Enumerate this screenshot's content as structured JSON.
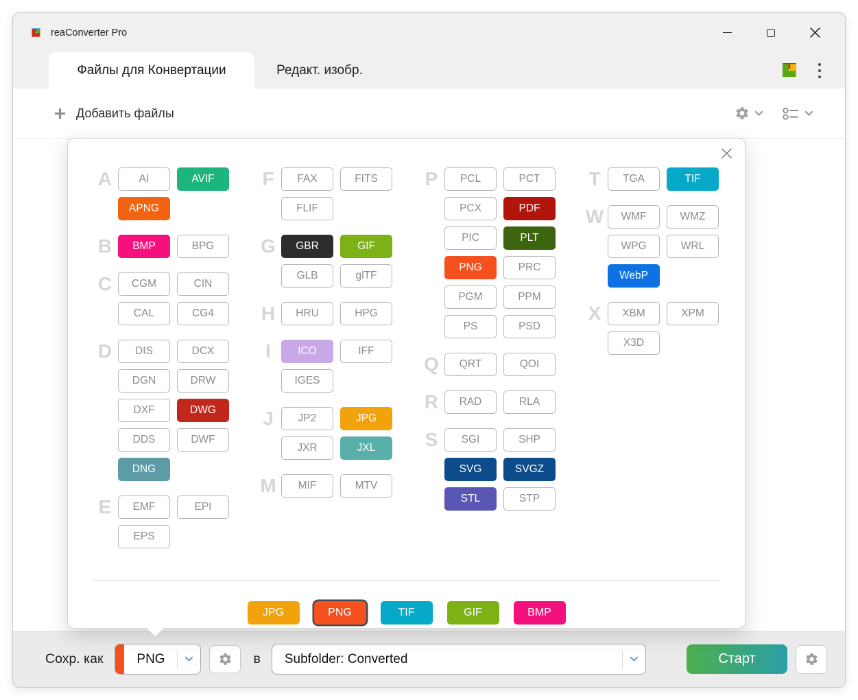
{
  "window": {
    "title": "reaConverter Pro"
  },
  "tabs": [
    {
      "label": "Файлы для Конвертации",
      "active": true
    },
    {
      "label": "Редакт. изобр.",
      "active": false
    }
  ],
  "toolbar": {
    "add_files_label": "Добавить файлы"
  },
  "brand": {
    "logo_colors": {
      "yellow": "#f2b50d",
      "blue": "#2678d9",
      "red": "#d6281e",
      "green": "#5aa814"
    }
  },
  "format_picker": {
    "columns": [
      {
        "sections": [
          {
            "letter": "A",
            "rows": [
              [
                {
                  "label": "AI"
                },
                {
                  "label": "AVIF",
                  "bg": "#1db57e"
                }
              ],
              [
                {
                  "label": "APNG",
                  "bg": "#f26411"
                }
              ]
            ]
          },
          {
            "letter": "B",
            "rows": [
              [
                {
                  "label": "BMP",
                  "bg": "#f5117d"
                },
                {
                  "label": "BPG"
                }
              ]
            ]
          },
          {
            "letter": "C",
            "rows": [
              [
                {
                  "label": "CGM"
                },
                {
                  "label": "CIN"
                }
              ],
              [
                {
                  "label": "CAL"
                },
                {
                  "label": "CG4"
                }
              ]
            ]
          },
          {
            "letter": "D",
            "rows": [
              [
                {
                  "label": "DIS"
                },
                {
                  "label": "DCX"
                }
              ],
              [
                {
                  "label": "DGN"
                },
                {
                  "label": "DRW"
                }
              ],
              [
                {
                  "label": "DXF"
                },
                {
                  "label": "DWG",
                  "bg": "#c2271b"
                }
              ],
              [
                {
                  "label": "DDS"
                },
                {
                  "label": "DWF"
                }
              ],
              [
                {
                  "label": "DNG",
                  "bg": "#5d9ba7"
                }
              ]
            ]
          },
          {
            "letter": "E",
            "rows": [
              [
                {
                  "label": "EMF"
                },
                {
                  "label": "EPI"
                }
              ],
              [
                {
                  "label": "EPS"
                }
              ]
            ]
          }
        ]
      },
      {
        "sections": [
          {
            "letter": "F",
            "rows": [
              [
                {
                  "label": "FAX"
                },
                {
                  "label": "FITS"
                }
              ],
              [
                {
                  "label": "FLIF"
                }
              ]
            ]
          },
          {
            "letter": "G",
            "rows": [
              [
                {
                  "label": "GBR",
                  "bg": "#2d2d2d"
                },
                {
                  "label": "GIF",
                  "bg": "#7cb216"
                }
              ],
              [
                {
                  "label": "GLB"
                },
                {
                  "label": "glTF"
                }
              ]
            ]
          },
          {
            "letter": "H",
            "rows": [
              [
                {
                  "label": "HRU"
                },
                {
                  "label": "HPG"
                }
              ]
            ]
          },
          {
            "letter": "I",
            "rows": [
              [
                {
                  "label": "ICO",
                  "bg": "#c8a9e8"
                },
                {
                  "label": "IFF"
                }
              ],
              [
                {
                  "label": "IGES"
                }
              ]
            ]
          },
          {
            "letter": "J",
            "rows": [
              [
                {
                  "label": "JP2"
                },
                {
                  "label": "JPG",
                  "bg": "#f2a30c"
                }
              ],
              [
                {
                  "label": "JXR"
                },
                {
                  "label": "JXL",
                  "bg": "#58b0a8"
                }
              ]
            ]
          },
          {
            "letter": "M",
            "rows": [
              [
                {
                  "label": "MIF"
                },
                {
                  "label": "MTV"
                }
              ]
            ]
          }
        ]
      },
      {
        "sections": [
          {
            "letter": "P",
            "rows": [
              [
                {
                  "label": "PCL"
                },
                {
                  "label": "PCT"
                }
              ],
              [
                {
                  "label": "PCX"
                },
                {
                  "label": "PDF",
                  "bg": "#b2150c"
                }
              ],
              [
                {
                  "label": "PIC"
                },
                {
                  "label": "PLT",
                  "bg": "#3d6510"
                }
              ],
              [
                {
                  "label": "PNG",
                  "bg": "#f4511e"
                },
                {
                  "label": "PRC"
                }
              ],
              [
                {
                  "label": "PGM"
                },
                {
                  "label": "PPM"
                }
              ],
              [
                {
                  "label": "PS"
                },
                {
                  "label": "PSD"
                }
              ]
            ]
          },
          {
            "letter": "Q",
            "rows": [
              [
                {
                  "label": "QRT"
                },
                {
                  "label": "QOI"
                }
              ]
            ]
          },
          {
            "letter": "R",
            "rows": [
              [
                {
                  "label": "RAD"
                },
                {
                  "label": "RLA"
                }
              ]
            ]
          },
          {
            "letter": "S",
            "rows": [
              [
                {
                  "label": "SGI"
                },
                {
                  "label": "SHP"
                }
              ],
              [
                {
                  "label": "SVG",
                  "bg": "#0c4c8a"
                },
                {
                  "label": "SVGZ",
                  "bg": "#0c4c8a"
                }
              ],
              [
                {
                  "label": "STL",
                  "bg": "#5a57b4"
                },
                {
                  "label": "STP"
                }
              ]
            ]
          }
        ]
      },
      {
        "sections": [
          {
            "letter": "T",
            "rows": [
              [
                {
                  "label": "TGA"
                },
                {
                  "label": "TIF",
                  "bg": "#06a9c8"
                }
              ]
            ]
          },
          {
            "letter": "W",
            "rows": [
              [
                {
                  "label": "WMF"
                },
                {
                  "label": "WMZ"
                }
              ],
              [
                {
                  "label": "WPG"
                },
                {
                  "label": "WRL"
                }
              ],
              [
                {
                  "label": "WebP",
                  "bg": "#0e72e4"
                }
              ]
            ]
          },
          {
            "letter": "X",
            "rows": [
              [
                {
                  "label": "XBM"
                },
                {
                  "label": "XPM"
                }
              ],
              [
                {
                  "label": "X3D"
                }
              ]
            ]
          }
        ]
      }
    ],
    "quick_formats": [
      {
        "label": "JPG",
        "bg": "#f2a30c"
      },
      {
        "label": "PNG",
        "bg": "#f4511e",
        "selected": true
      },
      {
        "label": "TIF",
        "bg": "#06a9c8"
      },
      {
        "label": "GIF",
        "bg": "#7cb216"
      },
      {
        "label": "BMP",
        "bg": "#f5117d"
      }
    ]
  },
  "bottom_bar": {
    "save_as_label": "Сохр. как",
    "format_select": {
      "value": "PNG",
      "accent": "#f4511e"
    },
    "in_label": "в",
    "destination_select": {
      "value": "Subfolder: Converted"
    },
    "start_button": {
      "label": "Старт",
      "gradient": [
        "#4db14d",
        "#2a9fa8"
      ]
    }
  }
}
